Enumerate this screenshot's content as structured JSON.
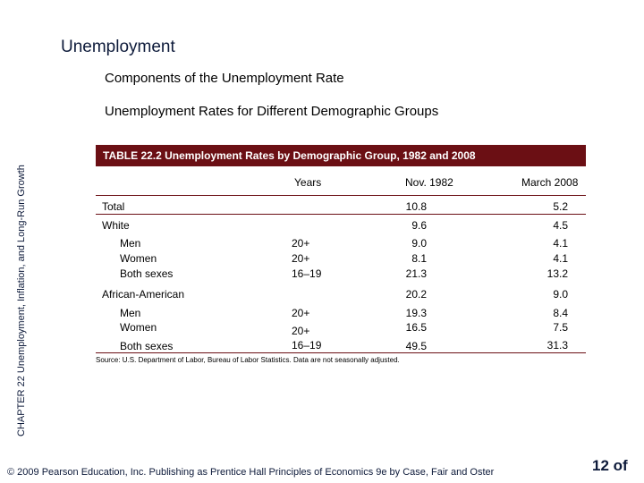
{
  "header": {
    "title": "Unemployment",
    "subtitle": "Components of the Unemployment Rate",
    "subheading": "Unemployment Rates for Different Demographic Groups"
  },
  "sidebar_text": "CHAPTER 22 Unemployment, Inflation, and Long-Run Growth",
  "table": {
    "caption": "TABLE 22.2  Unemployment Rates by Demographic Group, 1982 and 2008",
    "columns": [
      "Years",
      "Nov. 1982",
      "March 2008"
    ],
    "rows": [
      {
        "label": "Total",
        "years": "",
        "nov1982": "10.8",
        "mar2008": "5.2"
      },
      {
        "label": "White",
        "years": "",
        "nov1982": "9.6",
        "mar2008": "4.5"
      },
      {
        "label": "Men",
        "years": "20+",
        "nov1982": "9.0",
        "mar2008": "4.1"
      },
      {
        "label": "Women",
        "years": "20+",
        "nov1982": "8.1",
        "mar2008": "4.1"
      },
      {
        "label": "Both sexes",
        "years": "16–19",
        "nov1982": "21.3",
        "mar2008": "13.2"
      },
      {
        "label": "African-American",
        "years": "",
        "nov1982": "20.2",
        "mar2008": "9.0"
      },
      {
        "label": "Men",
        "years": "20+",
        "nov1982": "19.3",
        "mar2008": "8.4"
      },
      {
        "label": "Women",
        "years": "20+",
        "nov1982": "16.5",
        "mar2008": "7.5"
      },
      {
        "label": "Both sexes",
        "years": "16–19",
        "nov1982": "49.5",
        "mar2008": "31.3"
      }
    ],
    "source": "Source:  U.S. Department of Labor, Bureau of Labor Statistics.  Data are not seasonally adjusted."
  },
  "footer": {
    "copyright": "© 2009 Pearson Education, Inc. Publishing as Prentice Hall  Principles of Economics 9e by Case, Fair and Oster",
    "page": "12 of"
  },
  "colors": {
    "accent": "#6b0f14",
    "text": "#0d1a3a"
  }
}
